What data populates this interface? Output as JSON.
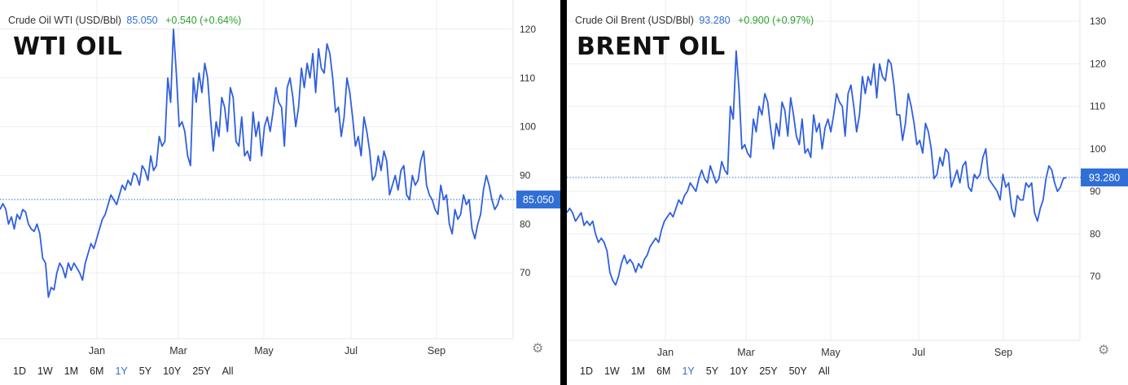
{
  "colors": {
    "line": "#2f5fe0",
    "accent": "#2f6fd6",
    "up": "#2ca02c"
  },
  "panels": [
    {
      "id": "wti",
      "header": {
        "name": "Crude Oil WTI (USD/Bbl)",
        "price": "85.050",
        "change": "+0.540 (+0.64%)"
      },
      "big_label": "WTI OIL",
      "timeframes": [
        "1D",
        "1W",
        "1M",
        "6M",
        "1Y",
        "5Y",
        "10Y",
        "25Y",
        "All"
      ],
      "active_timeframe": "1Y"
    },
    {
      "id": "brent",
      "header": {
        "name": "Crude Oil Brent (USD/Bbl)",
        "price": "93.280",
        "change": "+0.900 (+0.97%)"
      },
      "big_label": "BRENT OIL",
      "timeframes": [
        "1D",
        "1W",
        "1M",
        "6M",
        "1Y",
        "5Y",
        "10Y",
        "25Y",
        "50Y",
        "All"
      ],
      "active_timeframe": "1Y"
    }
  ],
  "chart_data": [
    {
      "type": "line",
      "title": "Crude Oil WTI (USD/Bbl)",
      "x_tick_labels": [
        "Jan",
        "Mar",
        "May",
        "Jul",
        "Sep"
      ],
      "y_ticks": [
        70,
        80,
        90,
        100,
        110,
        120
      ],
      "ylim": [
        60,
        126
      ],
      "current_value": 85.05,
      "current_label": "85.050",
      "grid": true,
      "series": [
        {
          "values": [
            83,
            84.2,
            83.1,
            80,
            81.5,
            79,
            82,
            81,
            83,
            82.5,
            80,
            79,
            78.5,
            80,
            78,
            73,
            72,
            65,
            67,
            66.5,
            70,
            72,
            71,
            69,
            72,
            70.5,
            72,
            71,
            70,
            68.5,
            72,
            74,
            76,
            75,
            77,
            79,
            81,
            82,
            84,
            86,
            85,
            84,
            86,
            88,
            87,
            89,
            88,
            90.5,
            90,
            88,
            92,
            91,
            89,
            94,
            91,
            92,
            98,
            96,
            97,
            110,
            105,
            120,
            111,
            100,
            101,
            99,
            94,
            92,
            110,
            105,
            111,
            107,
            113,
            110,
            102,
            95,
            101,
            98,
            106,
            104,
            99,
            108,
            106,
            97,
            96,
            102,
            94,
            95,
            93,
            103,
            98,
            101,
            94,
            100,
            102,
            99,
            103,
            108,
            105,
            104,
            96,
            108,
            110,
            106,
            100,
            104,
            112,
            108,
            113,
            110,
            115,
            107,
            116,
            112,
            111,
            117,
            115,
            110,
            103,
            104,
            98,
            102,
            110,
            107,
            102,
            96,
            98,
            94,
            102,
            99,
            95,
            89,
            90,
            94,
            91,
            95,
            93,
            86,
            88,
            90,
            87,
            91,
            92,
            86,
            85,
            90,
            88,
            89,
            93,
            95,
            88,
            86,
            85,
            83,
            82,
            88,
            85,
            86,
            80,
            78,
            83,
            81,
            82,
            86,
            84,
            85,
            79,
            77,
            80,
            82,
            87,
            90,
            88,
            85,
            83,
            84,
            86,
            85.05
          ]
        }
      ]
    },
    {
      "type": "line",
      "title": "Crude Oil Brent (USD/Bbl)",
      "x_tick_labels": [
        "Jan",
        "Mar",
        "May",
        "Jul",
        "Sep"
      ],
      "y_ticks": [
        70,
        80,
        90,
        100,
        110,
        120,
        130
      ],
      "ylim": [
        60,
        135
      ],
      "current_value": 93.28,
      "current_label": "93.280",
      "grid": true,
      "series": [
        {
          "values": [
            85,
            86,
            85,
            83,
            84,
            85,
            82,
            83,
            82,
            83,
            80,
            78,
            79,
            78,
            76,
            71,
            69,
            68,
            70,
            73,
            75,
            73,
            74,
            73,
            71,
            73,
            72,
            74,
            75,
            77,
            78,
            79,
            78,
            81,
            83,
            84,
            85,
            84,
            86,
            88,
            87,
            89,
            90,
            92,
            91,
            90,
            93,
            95,
            93,
            92,
            96,
            94,
            92,
            93,
            97,
            95,
            94,
            110,
            107,
            123,
            114,
            100,
            101,
            99,
            98,
            107,
            104,
            110,
            108,
            113,
            111,
            105,
            100,
            106,
            103,
            111,
            109,
            103,
            112,
            108,
            103,
            101,
            107,
            99,
            100,
            98,
            108,
            104,
            106,
            100,
            105,
            107,
            104,
            108,
            113,
            111,
            110,
            103,
            113,
            115,
            110,
            104,
            108,
            117,
            113,
            117,
            115,
            120,
            112,
            120,
            117,
            116,
            121,
            120,
            115,
            108,
            108,
            102,
            106,
            113,
            110,
            106,
            101,
            102,
            99,
            106,
            104,
            100,
            93,
            94,
            98,
            96,
            100,
            99,
            91,
            93,
            95,
            92,
            96,
            97,
            91,
            90,
            94,
            93,
            94,
            98,
            100,
            93,
            92,
            91,
            90,
            88,
            94,
            91,
            92,
            86,
            84,
            89,
            88,
            88,
            92,
            91,
            92,
            85,
            83,
            86,
            88,
            93,
            96,
            95,
            92,
            90,
            91,
            93,
            93.28
          ]
        }
      ]
    }
  ]
}
